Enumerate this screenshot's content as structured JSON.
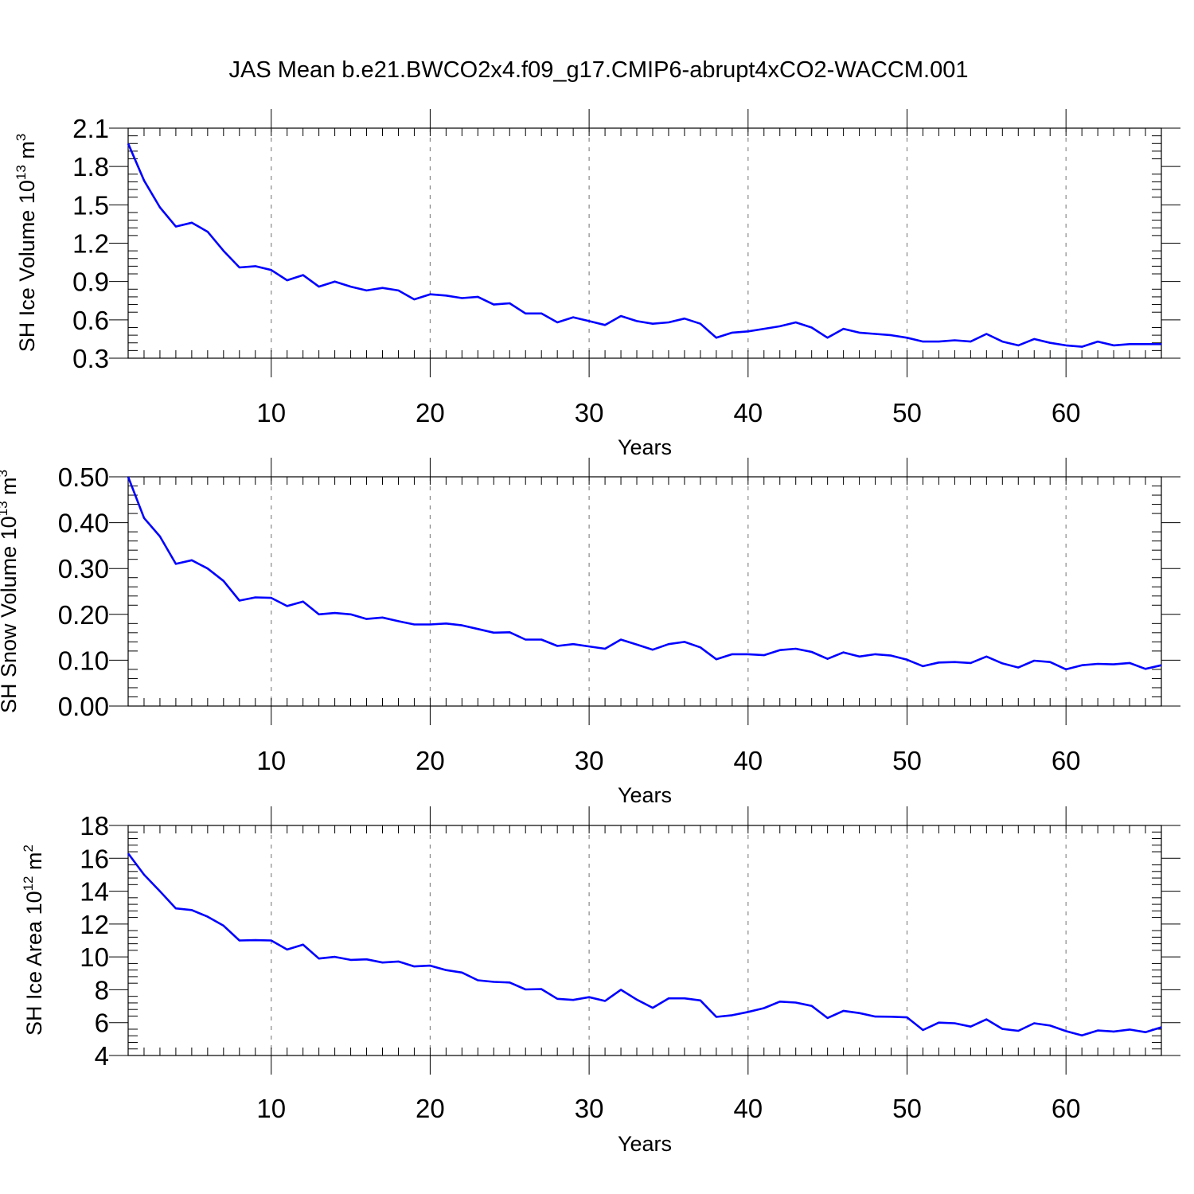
{
  "figure": {
    "title": "JAS Mean b.e21.BWCO2x4.f09_g17.CMIP6-abrupt4xCO2-WACCM.001"
  },
  "chart_data": [
    {
      "type": "line",
      "xlabel": "Years",
      "ylabel": "SH Ice Volume 10",
      "ylabel_sup": "13",
      "ylabel_unit": "m",
      "ylabel_unit_sup": "3",
      "xlim": [
        1,
        66
      ],
      "ylim": [
        0.3,
        2.1
      ],
      "xticks": [
        10,
        20,
        30,
        40,
        50,
        60
      ],
      "yticks": [
        0.3,
        0.6,
        0.9,
        1.2,
        1.5,
        1.8,
        2.1
      ],
      "ytick_labels": [
        "0.3",
        "0.6",
        "0.9",
        "1.2",
        "1.5",
        "1.8",
        "2.1"
      ],
      "grid": "x-dashed",
      "series": [
        {
          "color": "#0000ff",
          "x": [
            1,
            2,
            3,
            4,
            5,
            6,
            7,
            8,
            9,
            10,
            11,
            12,
            13,
            14,
            15,
            16,
            17,
            18,
            19,
            20,
            21,
            22,
            23,
            24,
            25,
            26,
            27,
            28,
            29,
            30,
            31,
            32,
            33,
            34,
            35,
            36,
            37,
            38,
            39,
            40,
            41,
            42,
            43,
            44,
            45,
            46,
            47,
            48,
            49,
            50,
            51,
            52,
            53,
            54,
            55,
            56,
            57,
            58,
            59,
            60,
            61,
            62,
            63,
            64,
            65,
            66
          ],
          "values": [
            1.98,
            1.69,
            1.48,
            1.33,
            1.36,
            1.29,
            1.14,
            1.01,
            1.02,
            0.99,
            0.91,
            0.95,
            0.86,
            0.9,
            0.86,
            0.83,
            0.85,
            0.83,
            0.76,
            0.8,
            0.79,
            0.77,
            0.78,
            0.72,
            0.73,
            0.65,
            0.65,
            0.58,
            0.62,
            0.59,
            0.56,
            0.63,
            0.59,
            0.57,
            0.58,
            0.61,
            0.57,
            0.46,
            0.5,
            0.51,
            0.53,
            0.55,
            0.58,
            0.54,
            0.46,
            0.53,
            0.5,
            0.49,
            0.48,
            0.46,
            0.43,
            0.43,
            0.44,
            0.43,
            0.49,
            0.43,
            0.4,
            0.45,
            0.42,
            0.4,
            0.39,
            0.43,
            0.4,
            0.41,
            0.41,
            0.41
          ]
        }
      ]
    },
    {
      "type": "line",
      "xlabel": "Years",
      "ylabel": "SH Snow Volume 10",
      "ylabel_sup": "13",
      "ylabel_unit": "m",
      "ylabel_unit_sup": "3",
      "xlim": [
        1,
        66
      ],
      "ylim": [
        0.0,
        0.5
      ],
      "xticks": [
        10,
        20,
        30,
        40,
        50,
        60
      ],
      "yticks": [
        0.0,
        0.1,
        0.2,
        0.3,
        0.4,
        0.5
      ],
      "ytick_labels": [
        "0.00",
        "0.10",
        "0.20",
        "0.30",
        "0.40",
        "0.50"
      ],
      "grid": "x-dashed",
      "series": [
        {
          "color": "#0000ff",
          "x": [
            1,
            2,
            3,
            4,
            5,
            6,
            7,
            8,
            9,
            10,
            11,
            12,
            13,
            14,
            15,
            16,
            17,
            18,
            19,
            20,
            21,
            22,
            23,
            24,
            25,
            26,
            27,
            28,
            29,
            30,
            31,
            32,
            33,
            34,
            35,
            36,
            37,
            38,
            39,
            40,
            41,
            42,
            43,
            44,
            45,
            46,
            47,
            48,
            49,
            50,
            51,
            52,
            53,
            54,
            55,
            56,
            57,
            58,
            59,
            60,
            61,
            62,
            63,
            64,
            65,
            66
          ],
          "values": [
            0.5,
            0.41,
            0.37,
            0.31,
            0.318,
            0.3,
            0.273,
            0.23,
            0.237,
            0.236,
            0.218,
            0.228,
            0.2,
            0.203,
            0.2,
            0.19,
            0.193,
            0.185,
            0.178,
            0.178,
            0.18,
            0.176,
            0.168,
            0.16,
            0.161,
            0.145,
            0.145,
            0.131,
            0.135,
            0.13,
            0.125,
            0.145,
            0.134,
            0.123,
            0.135,
            0.14,
            0.128,
            0.102,
            0.113,
            0.113,
            0.111,
            0.122,
            0.125,
            0.118,
            0.103,
            0.117,
            0.108,
            0.113,
            0.11,
            0.101,
            0.087,
            0.095,
            0.096,
            0.094,
            0.108,
            0.093,
            0.084,
            0.099,
            0.096,
            0.08,
            0.089,
            0.092,
            0.091,
            0.094,
            0.081,
            0.089
          ]
        }
      ]
    },
    {
      "type": "line",
      "xlabel": "Years",
      "ylabel": "SH Ice Area 10",
      "ylabel_sup": "12",
      "ylabel_unit": "m",
      "ylabel_unit_sup": "2",
      "xlim": [
        1,
        66
      ],
      "ylim": [
        4,
        18
      ],
      "xticks": [
        10,
        20,
        30,
        40,
        50,
        60
      ],
      "yticks": [
        4,
        6,
        8,
        10,
        12,
        14,
        16,
        18
      ],
      "ytick_labels": [
        "4",
        "6",
        "8",
        "10",
        "12",
        "14",
        "16",
        "18"
      ],
      "grid": "x-dashed",
      "series": [
        {
          "color": "#0000ff",
          "x": [
            1,
            2,
            3,
            4,
            5,
            6,
            7,
            8,
            9,
            10,
            11,
            12,
            13,
            14,
            15,
            16,
            17,
            18,
            19,
            20,
            21,
            22,
            23,
            24,
            25,
            26,
            27,
            28,
            29,
            30,
            31,
            32,
            33,
            34,
            35,
            36,
            37,
            38,
            39,
            40,
            41,
            42,
            43,
            44,
            45,
            46,
            47,
            48,
            49,
            50,
            51,
            52,
            53,
            54,
            55,
            56,
            57,
            58,
            59,
            60,
            61,
            62,
            63,
            64,
            65,
            66
          ],
          "values": [
            16.3,
            15.0,
            14.0,
            12.95,
            12.85,
            12.45,
            11.9,
            11.0,
            11.02,
            11.0,
            10.45,
            10.75,
            9.9,
            10.0,
            9.82,
            9.85,
            9.66,
            9.72,
            9.42,
            9.47,
            9.2,
            9.05,
            8.58,
            8.48,
            8.44,
            8.02,
            8.04,
            7.45,
            7.38,
            7.55,
            7.32,
            8.0,
            7.4,
            6.9,
            7.48,
            7.48,
            7.35,
            6.35,
            6.45,
            6.65,
            6.88,
            7.28,
            7.22,
            7.02,
            6.28,
            6.72,
            6.58,
            6.37,
            6.36,
            6.32,
            5.55,
            6.0,
            5.96,
            5.76,
            6.2,
            5.62,
            5.5,
            5.96,
            5.82,
            5.48,
            5.22,
            5.52,
            5.46,
            5.58,
            5.42,
            5.72
          ]
        }
      ]
    }
  ]
}
